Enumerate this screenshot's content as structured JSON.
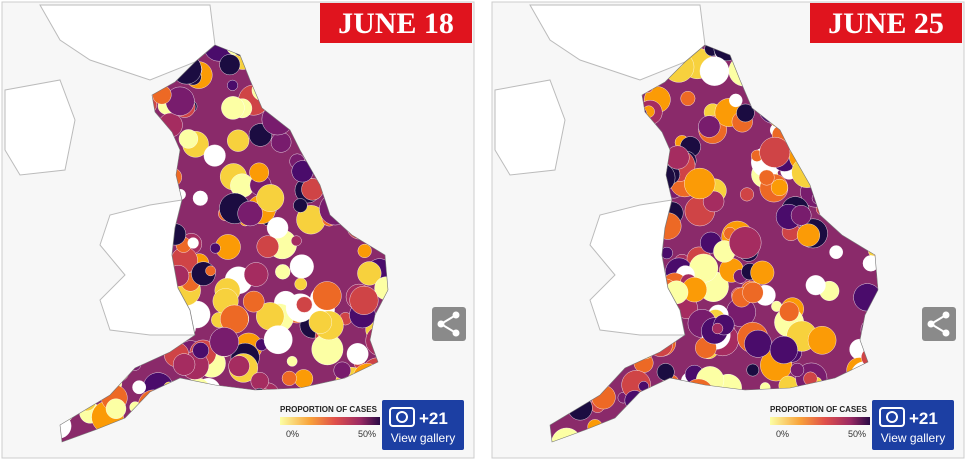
{
  "panels": [
    {
      "date": "JUNE 18",
      "legend": {
        "title": "PROPORTION OF CASES",
        "min_label": "0%",
        "max_label": "50%"
      },
      "gallery": {
        "count": "+21",
        "label": "View gallery"
      }
    },
    {
      "date": "JUNE 25",
      "legend": {
        "title": "PROPORTION OF CASES",
        "min_label": "0%",
        "max_label": "50%"
      },
      "gallery": {
        "count": "+21",
        "label": "View gallery"
      }
    }
  ]
}
